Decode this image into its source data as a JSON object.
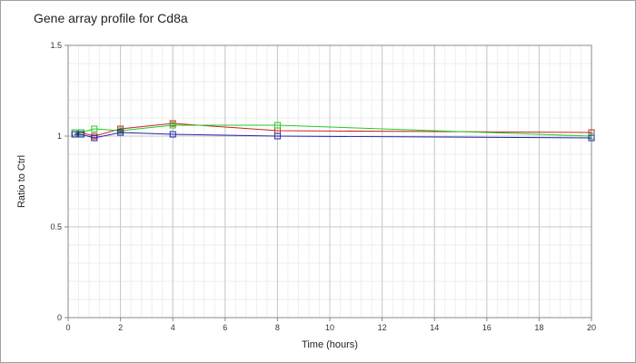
{
  "chart_data": {
    "type": "line",
    "title": "Gene array profile for Cd8a",
    "xlabel": "Time (hours)",
    "ylabel": "Ratio to Ctrl",
    "xlim": [
      0,
      20
    ],
    "ylim": [
      0,
      1.5
    ],
    "x_ticks": [
      "0",
      "2",
      "4",
      "6",
      "8",
      "10",
      "12",
      "14",
      "16",
      "18",
      "20"
    ],
    "y_ticks": [
      "0",
      "0.5",
      "1",
      "1.5"
    ],
    "grid": true,
    "legend": "none",
    "series": [
      {
        "color": "#cc2222",
        "x": [
          0.25,
          0.5,
          1,
          2,
          4,
          8,
          20
        ],
        "y": [
          1.01,
          1.02,
          1.0,
          1.04,
          1.07,
          1.03,
          1.02
        ]
      },
      {
        "color": "#22cc22",
        "x": [
          0.25,
          0.5,
          1,
          2,
          4,
          8,
          20
        ],
        "y": [
          1.02,
          1.02,
          1.04,
          1.03,
          1.06,
          1.06,
          1.0
        ]
      },
      {
        "color": "#2222aa",
        "x": [
          0.25,
          0.5,
          1,
          2,
          4,
          8,
          20
        ],
        "y": [
          1.01,
          1.01,
          0.99,
          1.02,
          1.01,
          1.0,
          0.99
        ]
      }
    ]
  }
}
